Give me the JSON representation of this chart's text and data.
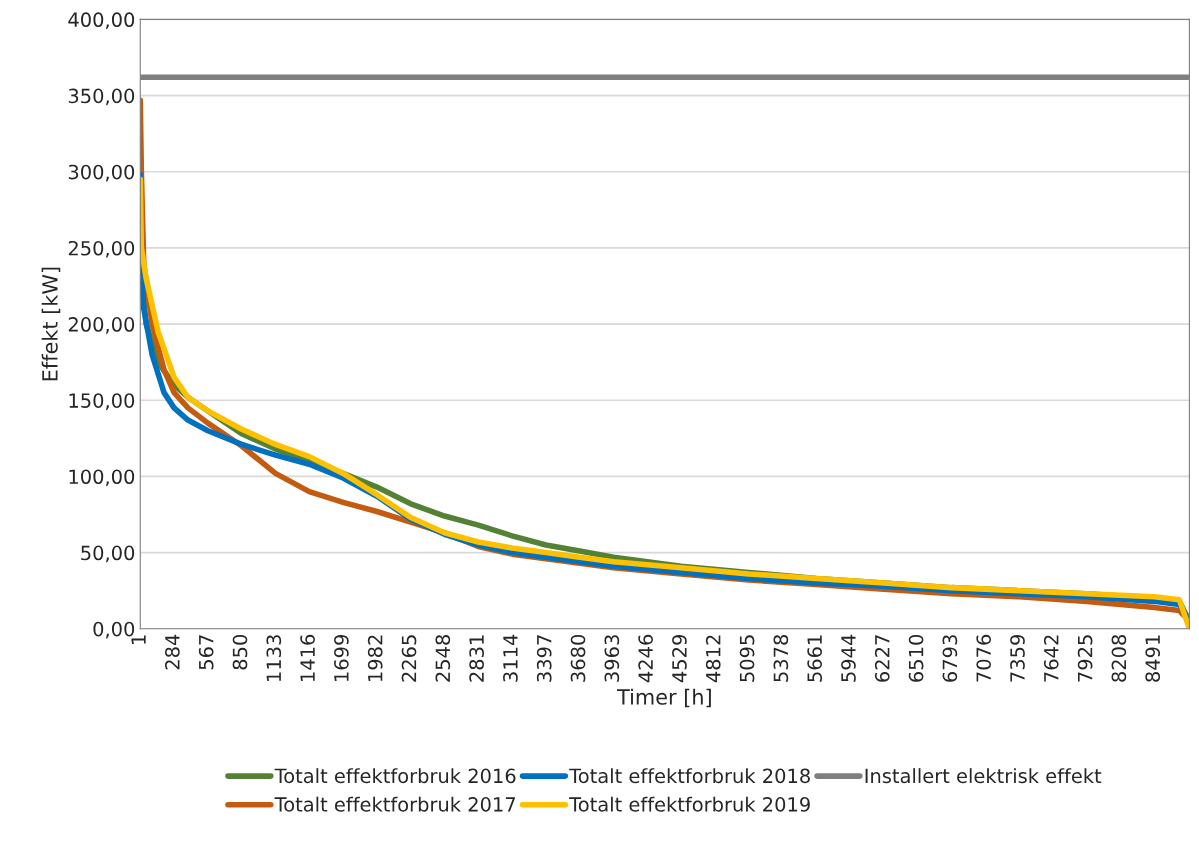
{
  "chart_data": {
    "type": "line",
    "xlabel": "Timer [h]",
    "ylabel": "Effekt [kW]",
    "xlim": [
      1,
      8784
    ],
    "xticks": [
      1,
      284,
      567,
      850,
      1133,
      1416,
      1699,
      1982,
      2265,
      2548,
      2831,
      3114,
      3397,
      3680,
      3963,
      4246,
      4529,
      4812,
      5095,
      5378,
      5661,
      5944,
      6227,
      6510,
      6793,
      7076,
      7359,
      7642,
      7925,
      8208,
      8491
    ],
    "ylim": [
      0,
      400
    ],
    "yticks": [
      {
        "value": 0,
        "label": "0,00"
      },
      {
        "value": 50,
        "label": "50,00"
      },
      {
        "value": 100,
        "label": "100,00"
      },
      {
        "value": 150,
        "label": "150,00"
      },
      {
        "value": 200,
        "label": "200,00"
      },
      {
        "value": 250,
        "label": "250,00"
      },
      {
        "value": 300,
        "label": "300,00"
      },
      {
        "value": 350,
        "label": "350,00"
      },
      {
        "value": 400,
        "label": "400,00"
      }
    ],
    "grid": "y",
    "legend": "bottom",
    "marker": "none",
    "line_style": "solid",
    "series": [
      {
        "name": "Totalt effektforbruk 2016",
        "color": "#548235",
        "x": [
          1,
          50,
          150,
          284,
          400,
          567,
          850,
          1133,
          1416,
          1699,
          1982,
          2265,
          2548,
          2831,
          3114,
          3397,
          3680,
          3963,
          4529,
          5095,
          5661,
          6227,
          6793,
          7359,
          7925,
          8491,
          8700,
          8784
        ],
        "values": [
          240,
          200,
          175,
          160,
          152,
          143,
          128,
          118,
          110,
          102,
          93,
          82,
          74,
          68,
          61,
          55,
          51,
          47,
          41,
          37,
          33,
          30,
          27,
          25,
          23,
          20,
          18,
          5
        ]
      },
      {
        "name": "Totalt effektforbruk 2017",
        "color": "#c55a11",
        "x": [
          1,
          10,
          30,
          100,
          200,
          284,
          400,
          567,
          850,
          1133,
          1416,
          1699,
          1982,
          2265,
          2548,
          2831,
          3114,
          3397,
          3680,
          3963,
          4529,
          5095,
          5661,
          6227,
          6793,
          7359,
          7925,
          8491,
          8700,
          8784
        ],
        "values": [
          347,
          300,
          240,
          200,
          170,
          155,
          145,
          135,
          120,
          102,
          90,
          83,
          77,
          70,
          63,
          54,
          49,
          46,
          43,
          40,
          36,
          32,
          29,
          26,
          23,
          21,
          18,
          14,
          12,
          5
        ]
      },
      {
        "name": "Totalt effektforbruk 2018",
        "color": "#0070c0",
        "x": [
          1,
          5,
          30,
          100,
          200,
          284,
          400,
          567,
          850,
          1133,
          1416,
          1699,
          1982,
          2265,
          2548,
          2831,
          3114,
          3397,
          3680,
          3963,
          4529,
          5095,
          5661,
          6227,
          6793,
          7359,
          7925,
          8491,
          8700,
          8784
        ],
        "values": [
          298,
          245,
          210,
          180,
          155,
          145,
          137,
          130,
          121,
          114,
          108,
          99,
          87,
          72,
          62,
          55,
          50,
          47,
          44,
          41,
          37,
          33,
          30,
          28,
          25,
          23,
          21,
          18,
          16,
          5
        ]
      },
      {
        "name": "Totalt effektforbruk 2019",
        "color": "#ffc000",
        "x": [
          1,
          10,
          50,
          150,
          284,
          400,
          567,
          850,
          1133,
          1416,
          1699,
          1982,
          2265,
          2548,
          2831,
          3114,
          3397,
          3680,
          3963,
          4529,
          5095,
          5661,
          6227,
          6793,
          7359,
          7925,
          8491,
          8700,
          8784
        ],
        "values": [
          295,
          250,
          230,
          195,
          165,
          152,
          143,
          131,
          121,
          113,
          102,
          88,
          73,
          63,
          57,
          53,
          50,
          47,
          44,
          40,
          36,
          33,
          30,
          27,
          25,
          23,
          21,
          19,
          0
        ]
      },
      {
        "name": "Installert elektrisk effekt",
        "color": "#7f7f7f",
        "x": [
          1,
          8784
        ],
        "values": [
          362,
          362
        ]
      }
    ]
  }
}
